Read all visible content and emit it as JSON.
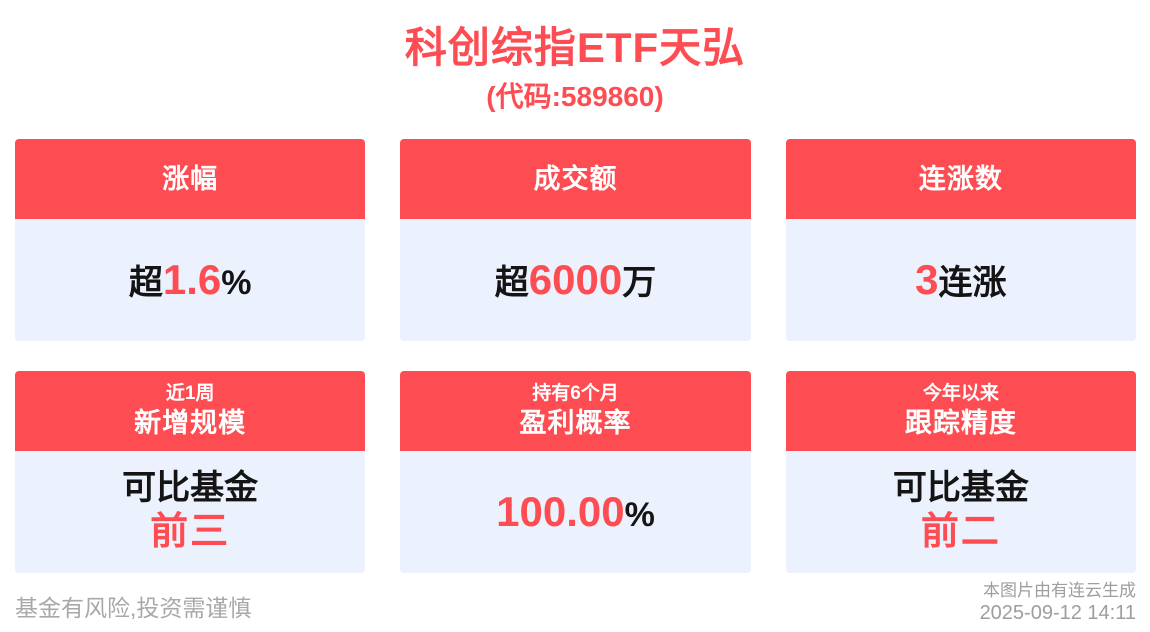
{
  "page": {
    "title": "科创综指ETF天弘",
    "subtitle": "(代码:589860)"
  },
  "colors": {
    "accent_red": "#FD4C52",
    "card_body_bg": "#EBF1FD",
    "muted_gray": "#A8A8A8"
  },
  "cards": [
    {
      "period": "",
      "title": "涨幅",
      "value_prefix": "超",
      "value_highlight": "1.6",
      "value_suffix": "%",
      "value_line2": ""
    },
    {
      "period": "",
      "title": "成交额",
      "value_prefix": "超",
      "value_highlight": "6000",
      "value_suffix": "万",
      "value_line2": ""
    },
    {
      "period": "",
      "title": "连涨数",
      "value_prefix": "",
      "value_highlight": "3",
      "value_suffix": "连涨",
      "value_line2": ""
    },
    {
      "period": "近1周",
      "title": "新增规模",
      "value_prefix": "可比基金",
      "value_highlight": "",
      "value_suffix": "",
      "value_line2": "前三"
    },
    {
      "period": "持有6个月",
      "title": "盈利概率",
      "value_prefix": "",
      "value_highlight": "100.00",
      "value_suffix": "%",
      "value_line2": ""
    },
    {
      "period": "今年以来",
      "title": "跟踪精度",
      "value_prefix": "可比基金",
      "value_highlight": "",
      "value_suffix": "",
      "value_line2": "前二"
    }
  ],
  "footer": {
    "disclaimer": "基金有风险,投资需谨慎",
    "generator": "本图片由有连云生成",
    "timestamp": "2025-09-12 14:11"
  }
}
